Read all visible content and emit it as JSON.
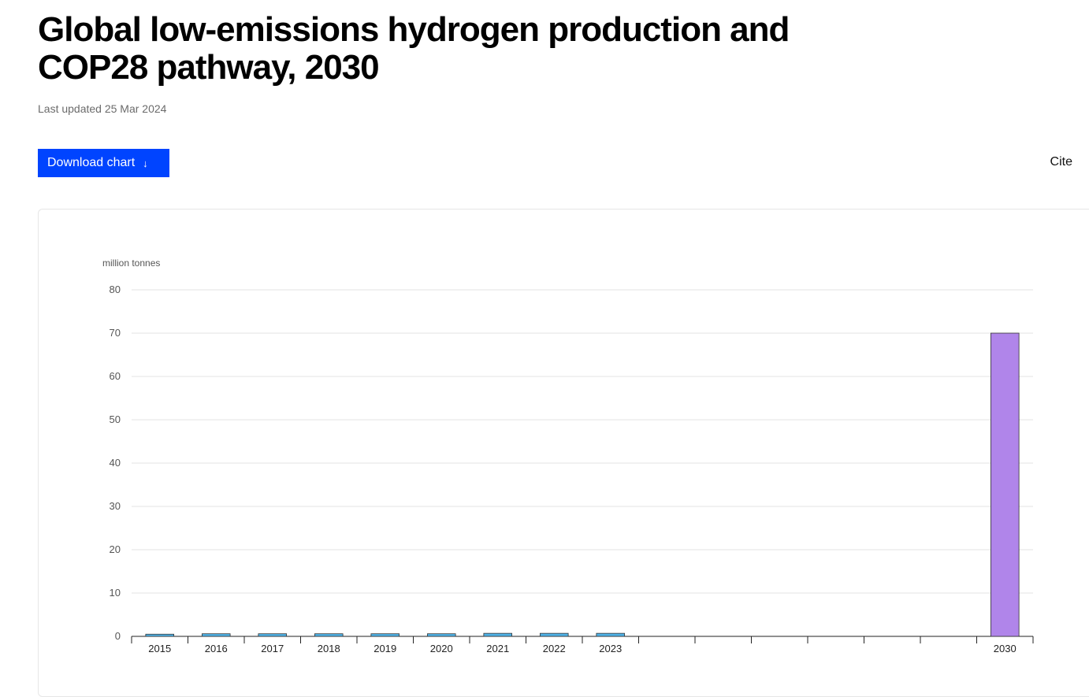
{
  "header": {
    "title": "Global low-emissions hydrogen production and\nCOP28 pathway, 2030",
    "last_updated": "Last updated 25 Mar 2024"
  },
  "toolbar": {
    "download_label": "Download chart",
    "download_icon": "arrow-down-icon",
    "cite_label": "Cite"
  },
  "colors": {
    "historical_bar": "#4fb3e8",
    "pathway_bar": "#b085ea",
    "download_button": "#0044ff"
  },
  "chart_data": {
    "type": "bar",
    "ylabel": "million tonnes",
    "ylim": [
      0,
      80
    ],
    "yticks": [
      0,
      10,
      20,
      30,
      40,
      50,
      60,
      70,
      80
    ],
    "grid": true,
    "categories": [
      "2015",
      "2016",
      "2017",
      "2018",
      "2019",
      "2020",
      "2021",
      "2022",
      "2023",
      "",
      "",
      "",
      "",
      "",
      "",
      "2030"
    ],
    "values": [
      0.5,
      0.6,
      0.6,
      0.6,
      0.6,
      0.6,
      0.7,
      0.7,
      0.7,
      null,
      null,
      null,
      null,
      null,
      null,
      70
    ],
    "bar_series": [
      "historical",
      "historical",
      "historical",
      "historical",
      "historical",
      "historical",
      "historical",
      "historical",
      "historical",
      null,
      null,
      null,
      null,
      null,
      null,
      "pathway"
    ]
  }
}
